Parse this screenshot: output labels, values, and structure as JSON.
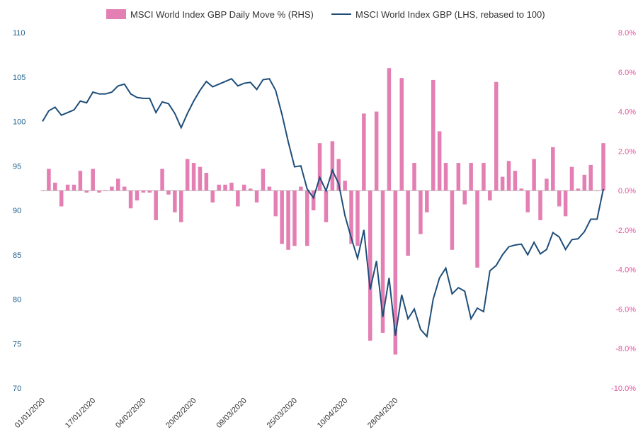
{
  "colors": {
    "bar": "#e47fb3",
    "line": "#1f4e79",
    "left_axis_text": "#1f5f8b",
    "right_axis_text": "#e0569e",
    "zero_axis": "#b0b0b0"
  },
  "chart_data": {
    "type": "bar+line",
    "title": "",
    "legend": [
      {
        "key": "bar",
        "label": "MSCI World Index GBP Daily Move % (RHS)"
      },
      {
        "key": "line",
        "label": "MSCI World Index GBP (LHS, rebased to 100)"
      }
    ],
    "legend_position": "top-center",
    "left_axis": {
      "min": 70,
      "max": 110,
      "ticks": [
        "110",
        "105",
        "100",
        "95",
        "90",
        "85",
        "80",
        "75",
        "70"
      ]
    },
    "right_axis": {
      "min": -10,
      "max": 8,
      "ticks": [
        "8.0%",
        "6.0%",
        "4.0%",
        "2.0%",
        "0.0%",
        "-2.0%",
        "-4.0%",
        "-6.0%",
        "-8.0%",
        "-10.0%"
      ]
    },
    "x_tick_labels": [
      "01/01/2020",
      "17/01/2020",
      "04/02/2020",
      "20/02/2020",
      "09/03/2020",
      "25/03/2020",
      "10/04/2020",
      "28/04/2020"
    ],
    "x_tick_index": [
      0,
      8,
      16,
      24,
      32,
      40,
      48,
      56
    ],
    "grid": false,
    "series": [
      {
        "name": "MSCI World Index GBP Daily Move % (RHS)",
        "kind": "bar",
        "axis": "right",
        "values": [
          0.0,
          1.1,
          0.4,
          -0.8,
          0.3,
          0.3,
          1.0,
          -0.1,
          1.1,
          -0.1,
          0.0,
          0.2,
          0.6,
          0.2,
          -0.9,
          -0.5,
          -0.1,
          -0.1,
          -1.5,
          1.1,
          -0.2,
          -1.1,
          -1.6,
          1.6,
          1.4,
          1.2,
          0.9,
          -0.6,
          0.3,
          0.3,
          0.4,
          -0.8,
          0.3,
          0.1,
          -0.6,
          1.1,
          0.2,
          -1.3,
          -2.7,
          -3.0,
          -2.8,
          0.2,
          -2.8,
          -1.0,
          2.4,
          -1.6,
          2.5,
          1.6,
          0.5,
          -2.7,
          -2.8,
          3.9,
          -7.6,
          4.0,
          -7.2,
          6.2,
          -8.3,
          5.7,
          -3.3,
          1.4,
          -2.2,
          -1.1,
          5.6,
          3.0,
          1.4,
          -3.0,
          1.4,
          -0.7,
          1.4,
          -3.9,
          1.4,
          -0.5,
          5.5,
          0.7,
          1.5,
          1.0,
          0.1,
          -1.1,
          1.6,
          -1.5,
          0.6,
          2.2,
          -0.8,
          -1.3,
          1.2,
          0.1,
          0.8,
          1.3,
          0.0,
          2.4
        ],
        "dates_visible_as_ticks_only": true
      },
      {
        "name": "MSCI World Index GBP (LHS, rebased to 100)",
        "kind": "line",
        "axis": "left",
        "values": [
          100.0,
          101.2,
          101.6,
          100.7,
          101.0,
          101.3,
          102.3,
          102.1,
          103.3,
          103.1,
          103.1,
          103.3,
          104.0,
          104.2,
          103.1,
          102.7,
          102.6,
          102.6,
          101.0,
          102.2,
          102.0,
          100.9,
          99.3,
          100.9,
          102.3,
          103.5,
          104.5,
          103.9,
          104.2,
          104.5,
          104.8,
          104.0,
          104.3,
          104.4,
          103.6,
          104.7,
          104.8,
          103.5,
          100.8,
          97.7,
          94.9,
          95.0,
          92.4,
          91.4,
          93.7,
          92.2,
          94.5,
          93.0,
          89.4,
          86.9,
          84.6,
          87.8,
          81.1,
          84.3,
          78.0,
          82.4,
          75.9,
          80.5,
          77.8,
          78.9,
          76.6,
          75.8,
          80.0,
          82.4,
          83.5,
          80.6,
          81.3,
          80.9,
          77.8,
          79.0,
          78.6,
          83.2,
          83.8,
          85.0,
          85.9,
          86.1,
          86.2,
          85.0,
          86.4,
          85.1,
          85.6,
          87.5,
          87.0,
          85.6,
          86.7,
          86.8,
          87.6,
          89.0,
          89.0,
          92.4
        ]
      }
    ]
  }
}
